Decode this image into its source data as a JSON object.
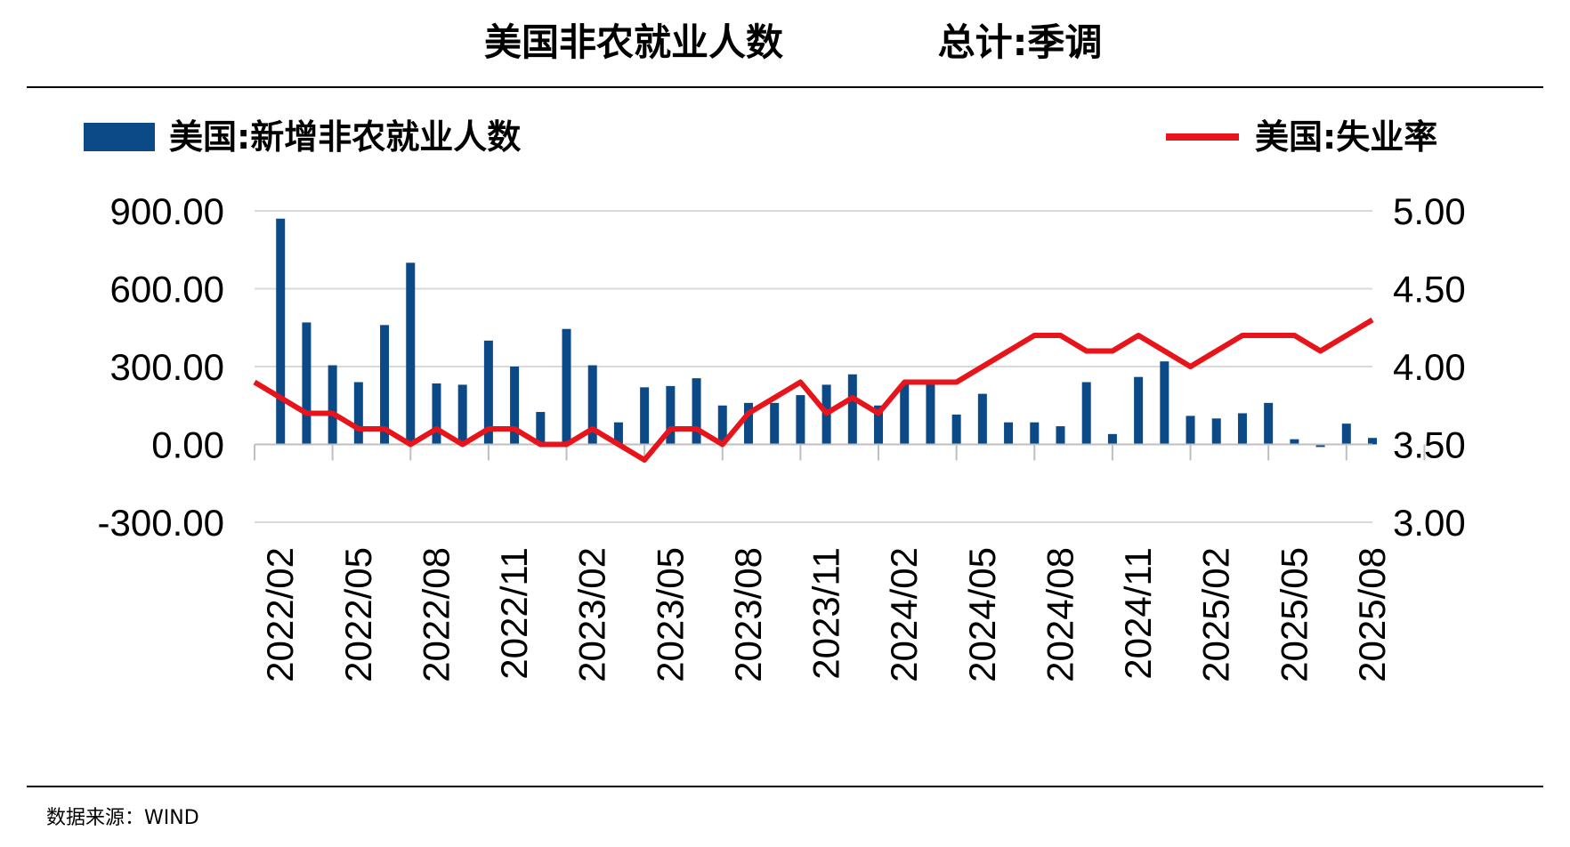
{
  "title": "美国非农就业人数",
  "subtitle": "总计:季调",
  "source": "数据来源：WIND",
  "colors": {
    "bar": "#0B4A87",
    "line": "#E8141B",
    "grid": "#D9D9D9",
    "axis": "#BFBFBF"
  },
  "chart_data": {
    "type": "bar+line",
    "categories": [
      "2022/01",
      "2022/02",
      "2022/03",
      "2022/04",
      "2022/05",
      "2022/06",
      "2022/07",
      "2022/08",
      "2022/09",
      "2022/10",
      "2022/11",
      "2022/12",
      "2023/01",
      "2023/02",
      "2023/03",
      "2023/04",
      "2023/05",
      "2023/06",
      "2023/07",
      "2023/08",
      "2023/09",
      "2023/10",
      "2023/11",
      "2023/12",
      "2024/01",
      "2024/02",
      "2024/03",
      "2024/04",
      "2024/05",
      "2024/06",
      "2024/07",
      "2024/08",
      "2024/09",
      "2024/10",
      "2024/11",
      "2024/12",
      "2025/01",
      "2025/02",
      "2025/03",
      "2025/04",
      "2025/05",
      "2025/06",
      "2025/07",
      "2025/08"
    ],
    "x_tick_labels": [
      "2022/02",
      "2022/05",
      "2022/08",
      "2022/11",
      "2023/02",
      "2023/05",
      "2023/08",
      "2023/11",
      "2024/02",
      "2024/05",
      "2024/08",
      "2024/11",
      "2025/02",
      "2025/05",
      "2025/08"
    ],
    "series": [
      {
        "name": "美国:新增非农就业人数",
        "type": "bar",
        "axis": "left",
        "values": [
          null,
          870,
          470,
          305,
          240,
          460,
          700,
          235,
          230,
          400,
          300,
          125,
          445,
          305,
          85,
          220,
          225,
          255,
          150,
          160,
          160,
          190,
          230,
          270,
          150,
          230,
          240,
          115,
          195,
          85,
          85,
          70,
          240,
          40,
          260,
          320,
          110,
          100,
          120,
          160,
          20,
          -10,
          80,
          25
        ]
      },
      {
        "name": "美国:失业率",
        "type": "line",
        "axis": "right",
        "values": [
          3.9,
          3.8,
          3.7,
          3.7,
          3.6,
          3.6,
          3.5,
          3.6,
          3.5,
          3.6,
          3.6,
          3.5,
          3.5,
          3.6,
          3.5,
          3.4,
          3.6,
          3.6,
          3.5,
          3.7,
          3.8,
          3.9,
          3.7,
          3.8,
          3.7,
          3.9,
          3.9,
          3.9,
          4.0,
          4.1,
          4.2,
          4.2,
          4.1,
          4.1,
          4.2,
          4.1,
          4.0,
          4.1,
          4.2,
          4.2,
          4.2,
          4.1,
          4.2,
          4.3
        ]
      }
    ],
    "y_left": {
      "ticks": [
        "900.00",
        "600.00",
        "300.00",
        "0.00",
        "-300.00"
      ],
      "range": [
        -300,
        900
      ]
    },
    "y_right": {
      "ticks": [
        "5.00",
        "4.50",
        "4.00",
        "3.50",
        "3.00"
      ],
      "range": [
        3.0,
        5.0
      ]
    },
    "grid": true,
    "legend": "top"
  }
}
